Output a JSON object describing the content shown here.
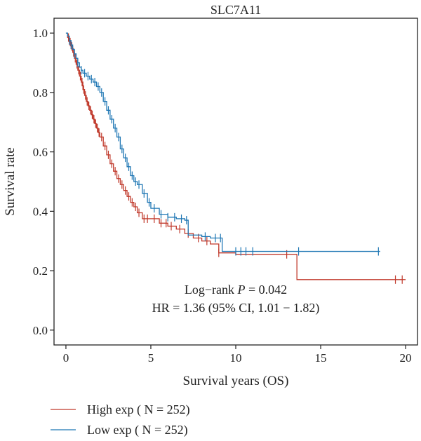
{
  "chart_data": {
    "type": "line",
    "title": "SLC7A11",
    "xlabel": "Survival years (OS)",
    "ylabel": "Survival rate",
    "xlim": [
      -0.7,
      20.7
    ],
    "ylim": [
      -0.05,
      1.05
    ],
    "x_ticks": [
      0,
      5,
      10,
      15,
      20
    ],
    "x_tick_labels": [
      "0",
      "5",
      "10",
      "15",
      "20"
    ],
    "y_ticks": [
      0.0,
      0.2,
      0.4,
      0.6,
      0.8,
      1.0
    ],
    "y_tick_labels": [
      "0.0",
      "0.2",
      "0.4",
      "0.6",
      "0.8",
      "1.0"
    ],
    "grid": false,
    "step": true,
    "legend_position": "bottom-left",
    "annotations": {
      "pvalue_prefix": "Log−rank ",
      "pvalue_symbol": "P",
      "pvalue_suffix": " = 0.042",
      "hr": "HR = 1.36 (95% CI, 1.01 − 1.82)"
    },
    "series": [
      {
        "name": "High exp ( N = 252)",
        "color": "#c0392b",
        "x": [
          0,
          0.1,
          0.2,
          0.3,
          0.4,
          0.5,
          0.6,
          0.7,
          0.8,
          0.9,
          1.0,
          1.1,
          1.2,
          1.3,
          1.4,
          1.5,
          1.6,
          1.7,
          1.8,
          1.9,
          2.0,
          2.2,
          2.4,
          2.6,
          2.8,
          3.0,
          3.2,
          3.4,
          3.6,
          3.8,
          4.0,
          4.2,
          4.5,
          5.0,
          5.5,
          6.0,
          6.5,
          7.0,
          7.5,
          8.0,
          8.5,
          9.0,
          10.0,
          13.6,
          20.0
        ],
        "y": [
          1.0,
          0.985,
          0.97,
          0.955,
          0.935,
          0.915,
          0.895,
          0.875,
          0.855,
          0.835,
          0.81,
          0.79,
          0.77,
          0.755,
          0.74,
          0.725,
          0.71,
          0.695,
          0.68,
          0.665,
          0.65,
          0.62,
          0.59,
          0.56,
          0.535,
          0.51,
          0.49,
          0.47,
          0.45,
          0.43,
          0.415,
          0.395,
          0.375,
          0.375,
          0.36,
          0.35,
          0.34,
          0.325,
          0.31,
          0.3,
          0.29,
          0.26,
          0.255,
          0.17,
          0.17
        ],
        "censor_x": [
          0.15,
          0.25,
          0.35,
          0.45,
          0.55,
          0.65,
          0.75,
          0.85,
          0.95,
          1.05,
          1.15,
          1.25,
          1.35,
          1.45,
          1.55,
          1.65,
          1.75,
          1.85,
          1.95,
          2.1,
          2.3,
          2.5,
          2.7,
          2.9,
          3.1,
          3.3,
          3.5,
          3.7,
          3.9,
          4.1,
          4.3,
          4.6,
          4.8,
          5.2,
          5.6,
          5.9,
          6.2,
          6.7,
          7.2,
          7.8,
          8.3,
          9.0,
          13.0,
          19.4,
          19.8
        ]
      },
      {
        "name": "Low exp ( N = 252)",
        "color": "#1f77b4",
        "x": [
          0,
          0.1,
          0.2,
          0.3,
          0.4,
          0.5,
          0.6,
          0.7,
          0.8,
          0.9,
          1.0,
          1.2,
          1.4,
          1.6,
          1.8,
          2.0,
          2.2,
          2.4,
          2.6,
          2.8,
          3.0,
          3.2,
          3.4,
          3.6,
          3.8,
          4.0,
          4.2,
          4.5,
          4.8,
          5.0,
          5.5,
          6.0,
          6.5,
          7.0,
          7.2,
          8.0,
          8.5,
          9.2,
          10.0,
          18.5
        ],
        "y": [
          1.0,
          0.99,
          0.975,
          0.96,
          0.945,
          0.93,
          0.915,
          0.9,
          0.885,
          0.875,
          0.865,
          0.855,
          0.845,
          0.835,
          0.82,
          0.8,
          0.77,
          0.74,
          0.71,
          0.68,
          0.65,
          0.61,
          0.58,
          0.55,
          0.52,
          0.5,
          0.49,
          0.46,
          0.43,
          0.41,
          0.39,
          0.38,
          0.375,
          0.37,
          0.32,
          0.315,
          0.31,
          0.265,
          0.265,
          0.265
        ],
        "censor_x": [
          0.2,
          0.3,
          0.5,
          0.7,
          0.9,
          1.1,
          1.3,
          1.5,
          1.7,
          1.9,
          2.1,
          2.3,
          2.5,
          2.7,
          2.9,
          3.1,
          3.3,
          3.5,
          3.7,
          3.9,
          4.1,
          4.3,
          4.6,
          4.9,
          5.2,
          5.6,
          6.0,
          6.4,
          6.8,
          7.1,
          8.2,
          8.8,
          9.1,
          10.0,
          10.3,
          10.6,
          11.0,
          13.7,
          18.4
        ]
      }
    ]
  }
}
